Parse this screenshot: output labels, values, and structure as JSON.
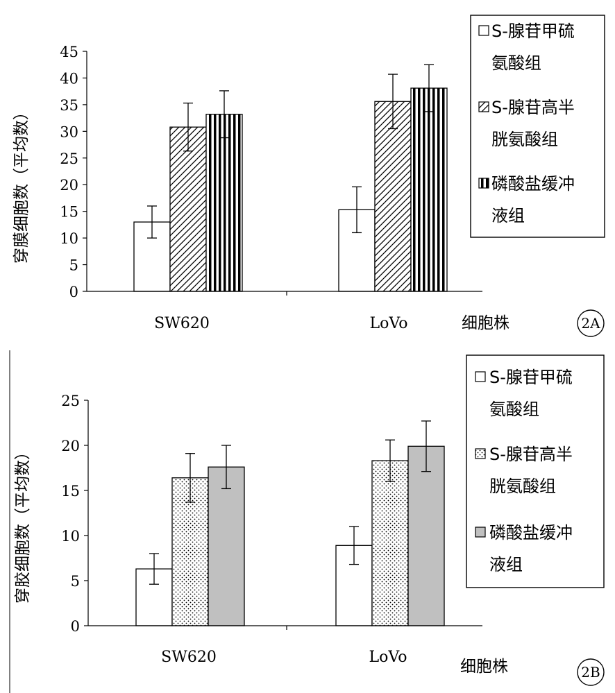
{
  "chart_data": [
    {
      "type": "bar",
      "panel_label": "2A",
      "ylabel": "穿膜细胞数（平均数）",
      "xlabel": "细胞株",
      "categories": [
        "SW620",
        "LoVo"
      ],
      "ylim": [
        0,
        45
      ],
      "yticks": [
        0,
        5,
        10,
        15,
        20,
        25,
        30,
        35,
        40,
        45
      ],
      "legend_position": "top-right",
      "series": [
        {
          "name": "S-腺苷甲硫氨酸组",
          "legend_lines": [
            "S-腺苷甲硫",
            "氨酸组"
          ],
          "pattern": "white",
          "values": [
            13,
            15.3
          ],
          "errors": [
            3,
            4.3
          ]
        },
        {
          "name": "S-腺苷高半胱氨酸组",
          "legend_lines": [
            "S-腺苷高半",
            "胱氨酸组"
          ],
          "pattern": "diagonal",
          "values": [
            30.8,
            35.6
          ],
          "errors": [
            4.5,
            5.1
          ]
        },
        {
          "name": "磷酸盐缓冲液组",
          "legend_lines": [
            "磷酸盐缓冲",
            "液组"
          ],
          "pattern": "vertical",
          "values": [
            33.2,
            38.1
          ],
          "errors": [
            4.4,
            4.4
          ]
        }
      ]
    },
    {
      "type": "bar",
      "panel_label": "2B",
      "ylabel": "穿胶细胞数（平均数）",
      "xlabel": "细胞株",
      "categories": [
        "SW620",
        "LoVo"
      ],
      "ylim": [
        0,
        25
      ],
      "yticks": [
        0,
        5,
        10,
        15,
        20,
        25
      ],
      "legend_position": "top-right",
      "series": [
        {
          "name": "S-腺苷甲硫氨酸组",
          "legend_lines": [
            "S-腺苷甲硫",
            "氨酸组"
          ],
          "pattern": "white",
          "values": [
            6.3,
            8.9
          ],
          "errors": [
            1.7,
            2.1
          ]
        },
        {
          "name": "S-腺苷高半胱氨酸组",
          "legend_lines": [
            "S-腺苷高半",
            "胱氨酸组"
          ],
          "pattern": "dotted",
          "values": [
            16.4,
            18.3
          ],
          "errors": [
            2.7,
            2.3
          ]
        },
        {
          "name": "磷酸盐缓冲液组",
          "legend_lines": [
            "磷酸盐缓冲",
            "液组"
          ],
          "pattern": "gray",
          "values": [
            17.6,
            19.9
          ],
          "errors": [
            2.4,
            2.8
          ]
        }
      ]
    }
  ]
}
